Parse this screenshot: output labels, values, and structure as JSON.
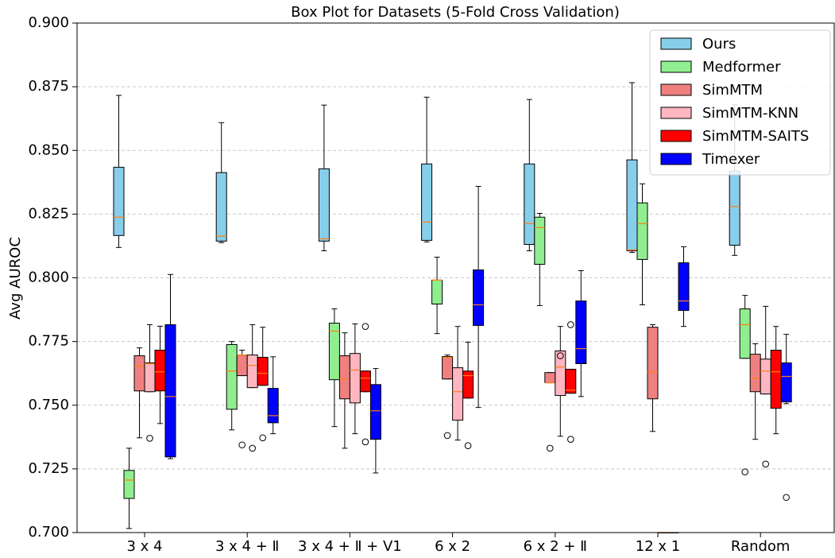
{
  "chart_data": {
    "type": "box",
    "title": "Box Plot for Datasets (5-Fold Cross Validation)",
    "y_label": "Avg AUROC",
    "categories": [
      "3 x 4",
      "3 x 4 + Ⅱ",
      "3 x 4 + Ⅱ + V1",
      "6 x 2",
      "6 x 2 + Ⅱ",
      "12 x 1",
      "Random"
    ],
    "ylim": [
      0.7,
      0.9
    ],
    "yticks": [
      {
        "value": 0.7,
        "label": "0.700"
      },
      {
        "value": 0.725,
        "label": "0.725"
      },
      {
        "value": 0.75,
        "label": "0.750"
      },
      {
        "value": 0.775,
        "label": "0.775"
      },
      {
        "value": 0.8,
        "label": "0.800"
      },
      {
        "value": 0.825,
        "label": "0.825"
      },
      {
        "value": 0.85,
        "label": "0.850"
      },
      {
        "value": 0.875,
        "label": "0.875"
      },
      {
        "value": 0.9,
        "label": "0.900"
      }
    ],
    "grid": true,
    "legend": "upper right",
    "median_color": "#ff7f0e",
    "series": [
      {
        "name": "Ours",
        "color": "#87ceeb",
        "whislo": [
          0.8119,
          0.8138,
          0.8106,
          0.8141,
          0.8106,
          0.81,
          0.8088
        ],
        "q1": [
          0.8166,
          0.8144,
          0.8144,
          0.8147,
          0.8131,
          0.8106,
          0.8128
        ],
        "med": [
          0.8238,
          0.8163,
          0.8153,
          0.8219,
          0.8213,
          0.8109,
          0.828
        ],
        "q3": [
          0.8434,
          0.8413,
          0.8428,
          0.8447,
          0.8447,
          0.8463,
          0.8419
        ],
        "whishi": [
          0.8716,
          0.8609,
          0.8678,
          0.8709,
          0.87,
          0.8766,
          0.868
        ],
        "fliers": [
          [],
          [],
          [],
          [],
          [],
          [],
          []
        ]
      },
      {
        "name": "Medformer",
        "color": "#90ee90",
        "whislo": [
          0.7016,
          0.7403,
          0.7416,
          0.7781,
          0.7891,
          0.7894,
          0.7684
        ],
        "q1": [
          0.7134,
          0.7484,
          0.76,
          0.7897,
          0.8053,
          0.8072,
          0.7684
        ],
        "med": [
          0.7206,
          0.7634,
          0.7791,
          0.7991,
          0.8197,
          0.8213,
          0.7816
        ],
        "q3": [
          0.7244,
          0.7738,
          0.7822,
          0.7991,
          0.8238,
          0.8294,
          0.7878
        ],
        "whishi": [
          0.7331,
          0.775,
          0.7878,
          0.8081,
          0.8253,
          0.8369,
          0.7931
        ],
        "fliers": [
          [],
          [],
          [],
          [],
          [],
          [],
          [
            0.7238
          ]
        ]
      },
      {
        "name": "SimMTM",
        "color": "#f08080",
        "whislo": [
          0.7372,
          0.7616,
          0.7331,
          0.7603,
          0.7588,
          0.7397,
          0.7366
        ],
        "q1": [
          0.7556,
          0.7616,
          0.7525,
          0.7603,
          0.7588,
          0.7525,
          0.7553
        ],
        "med": [
          0.7653,
          0.7697,
          0.7603,
          0.7688,
          0.7588,
          0.7631,
          0.7606
        ],
        "q3": [
          0.7694,
          0.7697,
          0.7694,
          0.7691,
          0.7628,
          0.7806,
          0.77
        ],
        "whishi": [
          0.7725,
          0.7716,
          0.7784,
          0.7697,
          0.7628,
          0.7816,
          0.7741
        ],
        "fliers": [
          [],
          [
            0.7344
          ],
          [],
          [
            0.7381
          ],
          [
            0.7331
          ],
          [],
          []
        ]
      },
      {
        "name": "SimMTM-KNN",
        "color": "#ffb6c1",
        "whislo": [
          0.7553,
          0.7569,
          0.7388,
          0.7363,
          0.7378,
          0.7,
          0.7544
        ],
        "q1": [
          0.7553,
          0.7569,
          0.7509,
          0.7441,
          0.7538,
          0.7,
          0.7544
        ],
        "med": [
          0.7663,
          0.7656,
          0.7638,
          0.7553,
          0.765,
          0.7,
          0.7634
        ],
        "q3": [
          0.7666,
          0.7697,
          0.7703,
          0.7647,
          0.7713,
          0.7,
          0.7681
        ],
        "whishi": [
          0.7816,
          0.7816,
          0.7819,
          0.7809,
          0.7809,
          0.7,
          0.7888
        ],
        "fliers": [
          [
            0.737
          ],
          [
            0.7331
          ],
          [],
          [],
          [
            0.7694
          ],
          [],
          [
            0.7269
          ]
        ]
      },
      {
        "name": "SimMTM-SAITS",
        "color": "#ff0000",
        "whislo": [
          0.7428,
          0.7578,
          0.7553,
          0.7528,
          0.7547,
          0.7,
          0.7388
        ],
        "q1": [
          0.7556,
          0.7578,
          0.7553,
          0.7528,
          0.7547,
          0.7,
          0.7488
        ],
        "med": [
          0.7631,
          0.7625,
          0.7606,
          0.7616,
          0.7559,
          0.7,
          0.7631
        ],
        "q3": [
          0.7716,
          0.7688,
          0.7634,
          0.7634,
          0.7641,
          0.7,
          0.7716
        ],
        "whishi": [
          0.781,
          0.7806,
          0.7634,
          0.7747,
          0.7641,
          0.7,
          0.7809
        ],
        "fliers": [
          [],
          [
            0.7372
          ],
          [
            0.7809,
            0.7356
          ],
          [
            0.7341
          ],
          [
            0.7816,
            0.7366
          ],
          [],
          []
        ]
      },
      {
        "name": "Timexer",
        "color": "#0000ff",
        "whislo": [
          0.729,
          0.7388,
          0.7234,
          0.7491,
          0.7534,
          0.7809,
          0.7506
        ],
        "q1": [
          0.7297,
          0.7431,
          0.7366,
          0.7813,
          0.7663,
          0.7872,
          0.7513
        ],
        "med": [
          0.7534,
          0.7459,
          0.7478,
          0.7894,
          0.7722,
          0.7909,
          0.7613
        ],
        "q3": [
          0.7816,
          0.7566,
          0.7581,
          0.8031,
          0.7909,
          0.8059,
          0.7666
        ],
        "whishi": [
          0.8013,
          0.769,
          0.7644,
          0.8359,
          0.8028,
          0.8122,
          0.7778
        ],
        "fliers": [
          [],
          [],
          [],
          [],
          [],
          [],
          [
            0.7138
          ]
        ]
      }
    ]
  }
}
